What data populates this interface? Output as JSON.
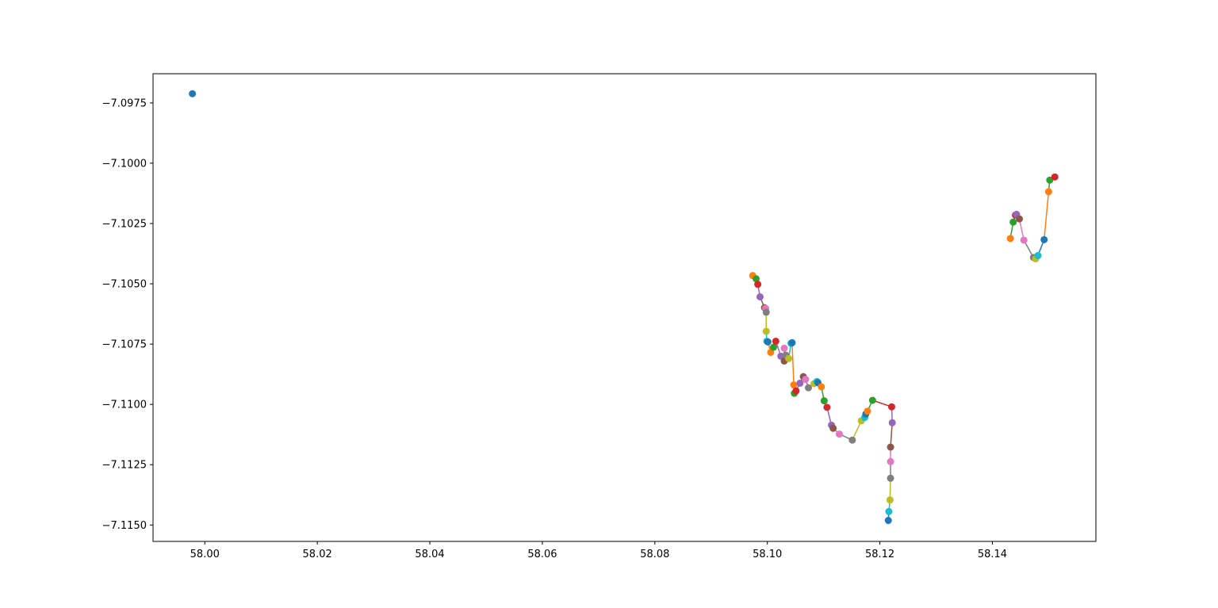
{
  "chart_data": {
    "type": "scatter",
    "title": "",
    "xlabel": "",
    "ylabel": "",
    "xlim": [
      57.9908,
      58.1584
    ],
    "ylim": [
      -7.11568,
      -7.09629
    ],
    "xticks": [
      "58.00",
      "58.02",
      "58.04",
      "58.06",
      "58.08",
      "58.10",
      "58.12",
      "58.14"
    ],
    "xtick_values": [
      58.0,
      58.02,
      58.04,
      58.06,
      58.08,
      58.1,
      58.12,
      58.14
    ],
    "yticks": [
      "−7.0975",
      "−7.1000",
      "−7.1025",
      "−7.1050",
      "−7.1075",
      "−7.1100",
      "−7.1125",
      "−7.1150"
    ],
    "ytick_values": [
      -7.0975,
      -7.1,
      -7.1025,
      -7.105,
      -7.1075,
      -7.11,
      -7.1125,
      -7.115
    ],
    "grid": false,
    "legend": "none",
    "colors": [
      "#1f77b4",
      "#ff7f0e",
      "#2ca02c",
      "#d62728",
      "#9467bd",
      "#8c564b",
      "#e377c2",
      "#7f7f7f",
      "#bcbd22",
      "#17becf"
    ],
    "points": [
      [
        57.9978,
        -7.09712
      ],
      [
        58.0974,
        -7.10466
      ],
      [
        58.098,
        -7.10479
      ],
      [
        58.0983,
        -7.10502
      ],
      [
        58.0987,
        -7.10554
      ],
      [
        58.0995,
        -7.10599
      ],
      [
        58.0997,
        -7.10602
      ],
      [
        58.0998,
        -7.10618
      ],
      [
        58.0998,
        -7.10697
      ],
      [
        58.0999,
        -7.10738
      ],
      [
        58.1001,
        -7.10741
      ],
      [
        58.1006,
        -7.10784
      ],
      [
        58.1011,
        -7.10763
      ],
      [
        58.1015,
        -7.10738
      ],
      [
        58.1024,
        -7.108
      ],
      [
        58.103,
        -7.1082
      ],
      [
        58.103,
        -7.10767
      ],
      [
        58.1033,
        -7.10796
      ],
      [
        58.1038,
        -7.1081
      ],
      [
        58.1042,
        -7.10747
      ],
      [
        58.1044,
        -7.10744
      ],
      [
        58.1047,
        -7.10919
      ],
      [
        58.1048,
        -7.10954
      ],
      [
        58.1051,
        -7.10944
      ],
      [
        58.1058,
        -7.10912
      ],
      [
        58.1064,
        -7.10885
      ],
      [
        58.1068,
        -7.10896
      ],
      [
        58.1073,
        -7.10931
      ],
      [
        58.1083,
        -7.10914
      ],
      [
        58.1088,
        -7.10905
      ],
      [
        58.109,
        -7.1091
      ],
      [
        58.1096,
        -7.10927
      ],
      [
        58.1101,
        -7.10985
      ],
      [
        58.1106,
        -7.11012
      ],
      [
        58.1114,
        -7.11086
      ],
      [
        58.1117,
        -7.11099
      ],
      [
        58.1128,
        -7.11123
      ],
      [
        58.1151,
        -7.11148
      ],
      [
        58.1167,
        -7.11068
      ],
      [
        58.1173,
        -7.11054
      ],
      [
        58.1175,
        -7.1104
      ],
      [
        58.1178,
        -7.11028
      ],
      [
        58.1187,
        -7.10983
      ],
      [
        58.1221,
        -7.1101
      ],
      [
        58.1222,
        -7.11076
      ],
      [
        58.1219,
        -7.11177
      ],
      [
        58.1219,
        -7.11237
      ],
      [
        58.1219,
        -7.11306
      ],
      [
        58.1218,
        -7.11396
      ],
      [
        58.1216,
        -7.11444
      ],
      [
        58.1215,
        -7.11481
      ],
      [
        58.1432,
        -7.10312
      ],
      [
        58.1437,
        -7.10244
      ],
      [
        58.1441,
        -7.10215
      ],
      [
        58.1443,
        -7.10212
      ],
      [
        58.1448,
        -7.10231
      ],
      [
        58.1456,
        -7.10319
      ],
      [
        58.1473,
        -7.10391
      ],
      [
        58.1477,
        -7.10396
      ],
      [
        58.1481,
        -7.10383
      ],
      [
        58.1492,
        -7.10317
      ],
      [
        58.15,
        -7.10118
      ],
      [
        58.1502,
        -7.1007
      ],
      [
        58.1511,
        -7.10057
      ]
    ]
  }
}
